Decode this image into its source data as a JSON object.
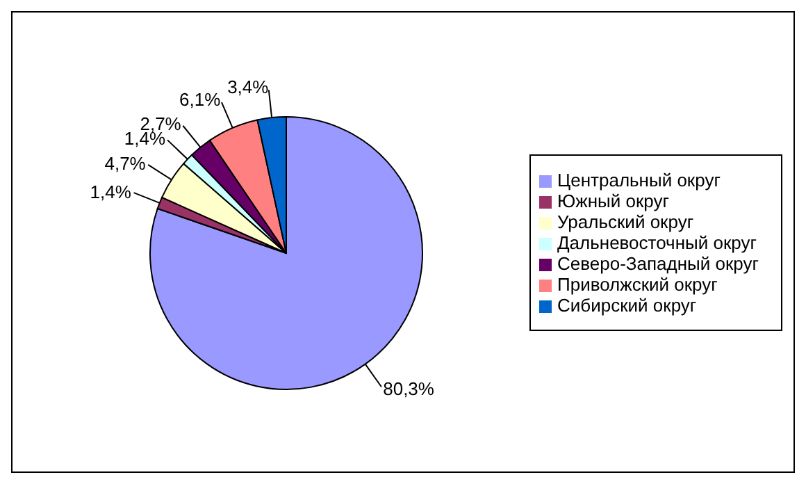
{
  "chart_data": {
    "type": "pie",
    "categories": [
      "Центральный округ",
      "Южный округ",
      "Уральский округ",
      "Дальневосточный округ",
      "Северо-Западный округ",
      "Приволжский округ",
      "Сибирский округ"
    ],
    "values": [
      80.3,
      1.4,
      4.7,
      1.4,
      2.7,
      6.1,
      3.4
    ],
    "colors": [
      "#9999ff",
      "#993366",
      "#ffffcc",
      "#ccffff",
      "#660066",
      "#ff8080",
      "#0066cc"
    ],
    "value_labels": [
      "80,3%",
      "1,4%",
      "4,7%",
      "1,4%",
      "2,7%",
      "6,1%",
      "3,4%"
    ],
    "legend": "right"
  }
}
